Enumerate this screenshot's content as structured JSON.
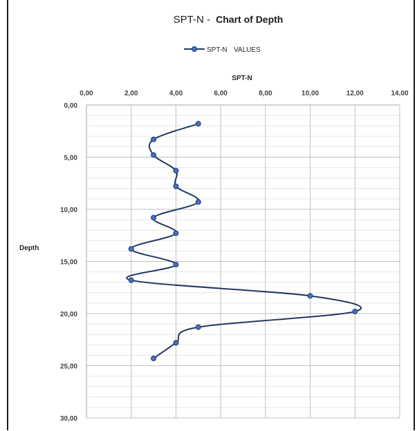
{
  "chart_data": {
    "type": "line",
    "title_prefix": "SPT-N - ",
    "title_bold": "Chart of Depth",
    "legend": {
      "position": "top",
      "series_label": "SPT-N",
      "extra_label": "VALUES"
    },
    "xlabel": "SPT-N",
    "ylabel": "Depth",
    "xlim": [
      0,
      14
    ],
    "ylim": [
      0,
      30
    ],
    "y_inverted": true,
    "x_axis_position": "top",
    "grid": true,
    "x_ticks": [
      "0,00",
      "2,00",
      "4,00",
      "6,00",
      "8,00",
      "10,00",
      "12,00",
      "14,00"
    ],
    "y_ticks": [
      "0,00",
      "5,00",
      "10,00",
      "15,00",
      "20,00",
      "25,00",
      "30,00"
    ],
    "series": [
      {
        "name": "SPT-N",
        "color": "#203864",
        "marker_color": "#4472c4",
        "points": [
          {
            "x": 5,
            "y": 1.8
          },
          {
            "x": 3,
            "y": 3.3
          },
          {
            "x": 3,
            "y": 4.8
          },
          {
            "x": 4,
            "y": 6.3
          },
          {
            "x": 4,
            "y": 7.8
          },
          {
            "x": 5,
            "y": 9.3
          },
          {
            "x": 3,
            "y": 10.8
          },
          {
            "x": 4,
            "y": 12.3
          },
          {
            "x": 2,
            "y": 13.8
          },
          {
            "x": 4,
            "y": 15.3
          },
          {
            "x": 2,
            "y": 16.8
          },
          {
            "x": 10,
            "y": 18.3
          },
          {
            "x": 12,
            "y": 19.8
          },
          {
            "x": 5,
            "y": 21.3
          },
          {
            "x": 4,
            "y": 22.8
          },
          {
            "x": 3,
            "y": 24.3
          }
        ]
      }
    ]
  }
}
